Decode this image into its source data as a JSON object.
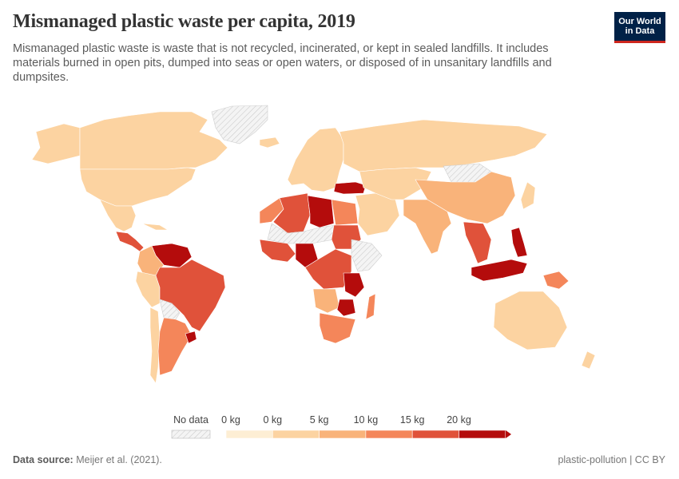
{
  "header": {
    "title": "Mismanaged plastic waste per capita, 2019",
    "subtitle": "Mismanaged plastic waste is waste that is not recycled, incinerated, or kept in sealed landfills. It includes materials burned in open pits, dumped into seas or open waters, or disposed of in unsanitary landfills and dumpsites.",
    "logo_line1": "Our World",
    "logo_line2": "in Data"
  },
  "legend": {
    "nodata_label": "No data",
    "bins": [
      {
        "label": "0 kg",
        "color": "#fdeed4"
      },
      {
        "label": "0 kg",
        "color": "#fcd3a1"
      },
      {
        "label": "5 kg",
        "color": "#f9b37a"
      },
      {
        "label": "10 kg",
        "color": "#f4865a"
      },
      {
        "label": "15 kg",
        "color": "#e0523a"
      },
      {
        "label": "20 kg",
        "color": "#b40c0c"
      }
    ]
  },
  "colors": {
    "c0": "#fdeed4",
    "c1": "#fcd3a1",
    "c2": "#f9b37a",
    "c3": "#f4865a",
    "c4": "#e0523a",
    "c5": "#b40c0c",
    "nodata": "#e8e8e8"
  },
  "footer": {
    "source_label": "Data source:",
    "source_text": "Meijer et al. (2021).",
    "right_text": "plastic-pollution | CC BY"
  },
  "map": {
    "regions": [
      {
        "name": "canada",
        "bin": 1
      },
      {
        "name": "alaska",
        "bin": 1
      },
      {
        "name": "usa",
        "bin": 1
      },
      {
        "name": "mexico",
        "bin": 1
      },
      {
        "name": "central-america",
        "bin": 4
      },
      {
        "name": "cuba",
        "bin": 1
      },
      {
        "name": "venezuela",
        "bin": 5
      },
      {
        "name": "colombia",
        "bin": 2
      },
      {
        "name": "peru",
        "bin": 1
      },
      {
        "name": "brazil",
        "bin": 4
      },
      {
        "name": "bolivia",
        "bin": -1
      },
      {
        "name": "chile",
        "bin": 1
      },
      {
        "name": "argentina",
        "bin": 3
      },
      {
        "name": "uruguay",
        "bin": 5
      },
      {
        "name": "greenland",
        "bin": -1
      },
      {
        "name": "iceland",
        "bin": 1
      },
      {
        "name": "europe",
        "bin": 1
      },
      {
        "name": "russia",
        "bin": 1
      },
      {
        "name": "turkey",
        "bin": 5
      },
      {
        "name": "morocco",
        "bin": 3
      },
      {
        "name": "algeria",
        "bin": 4
      },
      {
        "name": "libya",
        "bin": 5
      },
      {
        "name": "egypt",
        "bin": 3
      },
      {
        "name": "sahel",
        "bin": -1
      },
      {
        "name": "sudan",
        "bin": 4
      },
      {
        "name": "west-africa",
        "bin": 4
      },
      {
        "name": "nigeria",
        "bin": 5
      },
      {
        "name": "central-africa",
        "bin": 4
      },
      {
        "name": "tanzania",
        "bin": 5
      },
      {
        "name": "horn-of-africa",
        "bin": -1
      },
      {
        "name": "angola",
        "bin": 2
      },
      {
        "name": "zimbabwe",
        "bin": 5
      },
      {
        "name": "southern-africa",
        "bin": 3
      },
      {
        "name": "madagascar",
        "bin": 3
      },
      {
        "name": "middle-east",
        "bin": 1
      },
      {
        "name": "central-asia",
        "bin": 1
      },
      {
        "name": "mongolia",
        "bin": -1
      },
      {
        "name": "china",
        "bin": 2
      },
      {
        "name": "india",
        "bin": 2
      },
      {
        "name": "southeast-asia",
        "bin": 4
      },
      {
        "name": "philippines",
        "bin": 5
      },
      {
        "name": "indonesia",
        "bin": 5
      },
      {
        "name": "japan",
        "bin": 1
      },
      {
        "name": "png",
        "bin": 3
      },
      {
        "name": "australia",
        "bin": 1
      },
      {
        "name": "new-zealand",
        "bin": 1
      }
    ]
  }
}
